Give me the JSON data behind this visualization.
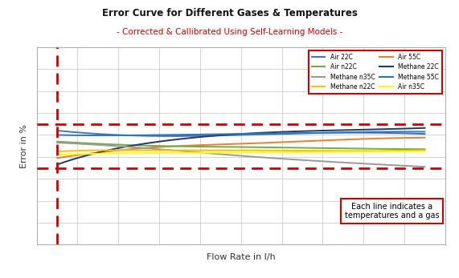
{
  "title": "Error Curve for Different Gases & Temperatures",
  "subtitle": "- Corrected & Callibrated Using Self-Learning Models -",
  "xlabel": "Flow Rate in l/h",
  "ylabel": "Error in %",
  "xlim": [
    0,
    10
  ],
  "ylim": [
    -4.5,
    4.5
  ],
  "hline_upper": 1.0,
  "hline_lower": -1.0,
  "vline_x": 0.5,
  "bg_color": "#ffffff",
  "grid_color": "#cccccc",
  "dashed_line_color": "#cc0000",
  "title_color": "#111111",
  "subtitle_color": "#cc0000",
  "annotation_text": "Each line indicates a\ntemperatures and a gas",
  "annotation_box_color": "#cc0000",
  "legend_order": [
    "Air 22C",
    "Methane n35C",
    "Air 55C",
    "Methane 55C",
    "Air n22C",
    "Methane n22C",
    "Methane 22C",
    "Air n35C"
  ],
  "lines": [
    {
      "label": "Air 22C",
      "color": "#4472C4",
      "x": [
        0.5,
        1.5,
        3.0,
        5.0,
        7.0,
        9.5
      ],
      "y": [
        0.7,
        0.55,
        0.45,
        0.5,
        0.6,
        0.65
      ]
    },
    {
      "label": "Air 55C",
      "color": "#ED7D31",
      "x": [
        0.5,
        1.5,
        3.0,
        5.0,
        7.0,
        9.5
      ],
      "y": [
        -0.55,
        -0.3,
        -0.05,
        0.1,
        0.25,
        0.38
      ]
    },
    {
      "label": "Air n22C",
      "color": "#70AD47",
      "x": [
        0.5,
        1.5,
        3.0,
        5.0,
        7.0,
        9.5
      ],
      "y": [
        0.2,
        0.1,
        0.0,
        -0.05,
        -0.1,
        -0.15
      ]
    },
    {
      "label": "Methane 22C",
      "color": "#1F3864",
      "x": [
        0.5,
        1.5,
        3.0,
        5.0,
        7.0,
        9.5
      ],
      "y": [
        -0.85,
        -0.3,
        0.2,
        0.55,
        0.7,
        0.82
      ]
    },
    {
      "label": "Methane n35C",
      "color": "#999999",
      "x": [
        0.5,
        1.5,
        3.0,
        5.0,
        7.0,
        9.5
      ],
      "y": [
        0.15,
        0.05,
        -0.15,
        -0.45,
        -0.7,
        -0.95
      ]
    },
    {
      "label": "Methane 55C",
      "color": "#2E75B6",
      "x": [
        0.5,
        1.5,
        3.0,
        5.0,
        7.0,
        9.5
      ],
      "y": [
        0.5,
        0.48,
        0.5,
        0.55,
        0.6,
        0.55
      ]
    },
    {
      "label": "Methane n22C",
      "color": "#FFC000",
      "x": [
        0.5,
        1.5,
        3.0,
        5.0,
        7.0,
        9.5
      ],
      "y": [
        -0.25,
        -0.2,
        -0.2,
        -0.2,
        -0.22,
        -0.2
      ]
    },
    {
      "label": "Air n35C",
      "color": "#FFFF00",
      "x": [
        0.5,
        1.5,
        3.0,
        5.0,
        7.0,
        9.5
      ],
      "y": [
        -0.4,
        -0.35,
        -0.32,
        -0.3,
        -0.28,
        -0.25
      ]
    }
  ]
}
